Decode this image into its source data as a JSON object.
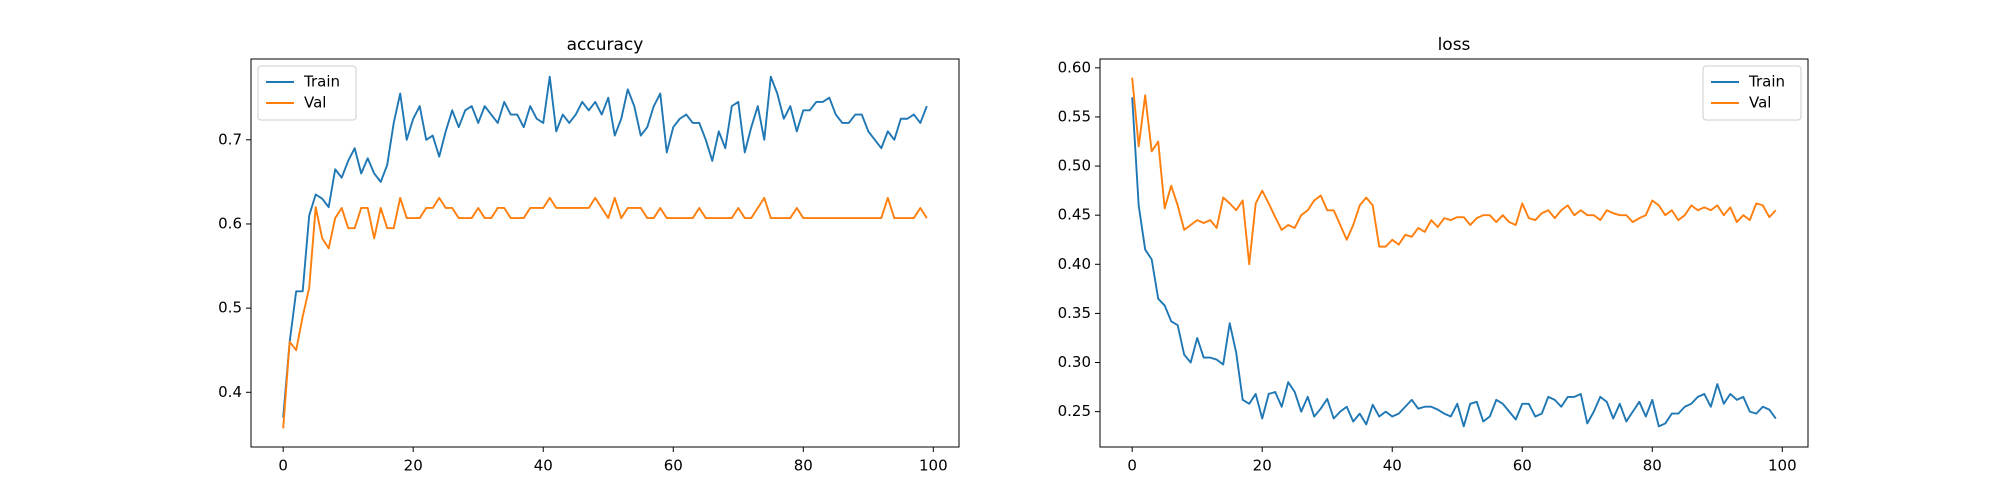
{
  "chart_data": [
    {
      "type": "line",
      "title": "accuracy",
      "legend": "upper left",
      "x": [
        0,
        1,
        2,
        3,
        4,
        5,
        6,
        7,
        8,
        9,
        10,
        11,
        12,
        13,
        14,
        15,
        16,
        17,
        18,
        19,
        20,
        21,
        22,
        23,
        24,
        25,
        26,
        27,
        28,
        29,
        30,
        31,
        32,
        33,
        34,
        35,
        36,
        37,
        38,
        39,
        40,
        41,
        42,
        43,
        44,
        45,
        46,
        47,
        48,
        49,
        50,
        51,
        52,
        53,
        54,
        55,
        56,
        57,
        58,
        59,
        60,
        61,
        62,
        63,
        64,
        65,
        66,
        67,
        68,
        69,
        70,
        71,
        72,
        73,
        74,
        75,
        76,
        77,
        78,
        79,
        80,
        81,
        82,
        83,
        84,
        85,
        86,
        87,
        88,
        89,
        90,
        91,
        92,
        93,
        94,
        95,
        96,
        97,
        98,
        99
      ],
      "series": [
        {
          "name": "Train",
          "color": "#1f77b4",
          "values": [
            0.37,
            0.46,
            0.52,
            0.52,
            0.61,
            0.635,
            0.63,
            0.62,
            0.665,
            0.655,
            0.675,
            0.69,
            0.66,
            0.678,
            0.66,
            0.65,
            0.67,
            0.72,
            0.755,
            0.7,
            0.725,
            0.74,
            0.7,
            0.705,
            0.68,
            0.71,
            0.735,
            0.715,
            0.735,
            0.74,
            0.72,
            0.74,
            0.73,
            0.72,
            0.745,
            0.73,
            0.73,
            0.715,
            0.74,
            0.725,
            0.72,
            0.775,
            0.71,
            0.73,
            0.72,
            0.73,
            0.745,
            0.735,
            0.745,
            0.73,
            0.75,
            0.705,
            0.725,
            0.76,
            0.74,
            0.705,
            0.715,
            0.74,
            0.755,
            0.685,
            0.715,
            0.725,
            0.73,
            0.72,
            0.72,
            0.7,
            0.675,
            0.71,
            0.69,
            0.74,
            0.745,
            0.685,
            0.715,
            0.74,
            0.7,
            0.775,
            0.755,
            0.725,
            0.74,
            0.71,
            0.735,
            0.735,
            0.745,
            0.745,
            0.75,
            0.73,
            0.72,
            0.72,
            0.73,
            0.73,
            0.71,
            0.7,
            0.69,
            0.71,
            0.7,
            0.725,
            0.725,
            0.73,
            0.72,
            0.74
          ]
        },
        {
          "name": "Val",
          "color": "#ff7f0e",
          "values": [
            0.357,
            0.46,
            0.45,
            0.49,
            0.524,
            0.62,
            0.583,
            0.571,
            0.607,
            0.619,
            0.595,
            0.595,
            0.619,
            0.619,
            0.583,
            0.619,
            0.595,
            0.595,
            0.631,
            0.607,
            0.607,
            0.607,
            0.619,
            0.619,
            0.631,
            0.619,
            0.619,
            0.607,
            0.607,
            0.607,
            0.619,
            0.607,
            0.607,
            0.619,
            0.619,
            0.607,
            0.607,
            0.607,
            0.619,
            0.619,
            0.619,
            0.631,
            0.619,
            0.619,
            0.619,
            0.619,
            0.619,
            0.619,
            0.631,
            0.619,
            0.607,
            0.631,
            0.607,
            0.619,
            0.619,
            0.619,
            0.607,
            0.607,
            0.619,
            0.607,
            0.607,
            0.607,
            0.607,
            0.607,
            0.619,
            0.607,
            0.607,
            0.607,
            0.607,
            0.607,
            0.619,
            0.607,
            0.607,
            0.619,
            0.631,
            0.607,
            0.607,
            0.607,
            0.607,
            0.619,
            0.607,
            0.607,
            0.607,
            0.607,
            0.607,
            0.607,
            0.607,
            0.607,
            0.607,
            0.607,
            0.607,
            0.607,
            0.607,
            0.631,
            0.607,
            0.607,
            0.607,
            0.607,
            0.619,
            0.607
          ]
        }
      ],
      "xlim": [
        -4.95,
        103.95
      ],
      "xticks": [
        0,
        20,
        40,
        60,
        80,
        100
      ],
      "ylim": [
        0.335,
        0.796
      ],
      "yticks": [
        0.4,
        0.5,
        0.6,
        0.7
      ]
    },
    {
      "type": "line",
      "title": "loss",
      "legend": "upper right",
      "x": [
        0,
        1,
        2,
        3,
        4,
        5,
        6,
        7,
        8,
        9,
        10,
        11,
        12,
        13,
        14,
        15,
        16,
        17,
        18,
        19,
        20,
        21,
        22,
        23,
        24,
        25,
        26,
        27,
        28,
        29,
        30,
        31,
        32,
        33,
        34,
        35,
        36,
        37,
        38,
        39,
        40,
        41,
        42,
        43,
        44,
        45,
        46,
        47,
        48,
        49,
        50,
        51,
        52,
        53,
        54,
        55,
        56,
        57,
        58,
        59,
        60,
        61,
        62,
        63,
        64,
        65,
        66,
        67,
        68,
        69,
        70,
        71,
        72,
        73,
        74,
        75,
        76,
        77,
        78,
        79,
        80,
        81,
        82,
        83,
        84,
        85,
        86,
        87,
        88,
        89,
        90,
        91,
        92,
        93,
        94,
        95,
        96,
        97,
        98,
        99
      ],
      "series": [
        {
          "name": "Train",
          "color": "#1f77b4",
          "values": [
            0.57,
            0.46,
            0.415,
            0.405,
            0.365,
            0.358,
            0.342,
            0.338,
            0.308,
            0.3,
            0.325,
            0.305,
            0.305,
            0.303,
            0.298,
            0.34,
            0.31,
            0.262,
            0.258,
            0.268,
            0.243,
            0.268,
            0.27,
            0.255,
            0.28,
            0.27,
            0.25,
            0.265,
            0.245,
            0.253,
            0.263,
            0.243,
            0.25,
            0.255,
            0.24,
            0.248,
            0.237,
            0.257,
            0.245,
            0.25,
            0.245,
            0.248,
            0.255,
            0.262,
            0.253,
            0.255,
            0.255,
            0.252,
            0.248,
            0.245,
            0.258,
            0.235,
            0.258,
            0.26,
            0.24,
            0.245,
            0.262,
            0.258,
            0.25,
            0.242,
            0.258,
            0.258,
            0.245,
            0.248,
            0.265,
            0.262,
            0.255,
            0.265,
            0.265,
            0.268,
            0.238,
            0.25,
            0.265,
            0.26,
            0.243,
            0.258,
            0.24,
            0.25,
            0.26,
            0.245,
            0.262,
            0.235,
            0.238,
            0.248,
            0.248,
            0.255,
            0.258,
            0.265,
            0.268,
            0.255,
            0.278,
            0.258,
            0.268,
            0.262,
            0.265,
            0.25,
            0.248,
            0.255,
            0.252,
            0.243
          ]
        },
        {
          "name": "Val",
          "color": "#ff7f0e",
          "values": [
            0.59,
            0.52,
            0.572,
            0.515,
            0.525,
            0.457,
            0.48,
            0.46,
            0.435,
            0.44,
            0.445,
            0.442,
            0.445,
            0.437,
            0.468,
            0.462,
            0.455,
            0.465,
            0.4,
            0.462,
            0.475,
            0.462,
            0.448,
            0.435,
            0.44,
            0.437,
            0.45,
            0.455,
            0.465,
            0.47,
            0.455,
            0.455,
            0.44,
            0.425,
            0.44,
            0.46,
            0.468,
            0.46,
            0.418,
            0.418,
            0.425,
            0.42,
            0.43,
            0.428,
            0.437,
            0.433,
            0.445,
            0.438,
            0.447,
            0.445,
            0.448,
            0.448,
            0.44,
            0.447,
            0.45,
            0.45,
            0.443,
            0.45,
            0.443,
            0.44,
            0.462,
            0.447,
            0.445,
            0.452,
            0.455,
            0.447,
            0.455,
            0.46,
            0.45,
            0.455,
            0.45,
            0.45,
            0.445,
            0.455,
            0.452,
            0.45,
            0.45,
            0.443,
            0.447,
            0.45,
            0.465,
            0.46,
            0.45,
            0.455,
            0.445,
            0.45,
            0.46,
            0.455,
            0.458,
            0.455,
            0.46,
            0.45,
            0.458,
            0.443,
            0.45,
            0.445,
            0.462,
            0.46,
            0.448,
            0.455
          ]
        }
      ],
      "xlim": [
        -4.95,
        103.95
      ],
      "xticks": [
        0,
        20,
        40,
        60,
        80,
        100
      ],
      "ylim": [
        0.214,
        0.609
      ],
      "yticks": [
        0.25,
        {
          "value": 0.3,
          "label": "0.30"
        },
        0.35,
        {
          "value": 0.4,
          "label": "0.40"
        },
        0.45,
        {
          "value": 0.5,
          "label": "0.50"
        },
        0.55,
        {
          "value": 0.6,
          "label": "0.60"
        }
      ]
    }
  ]
}
